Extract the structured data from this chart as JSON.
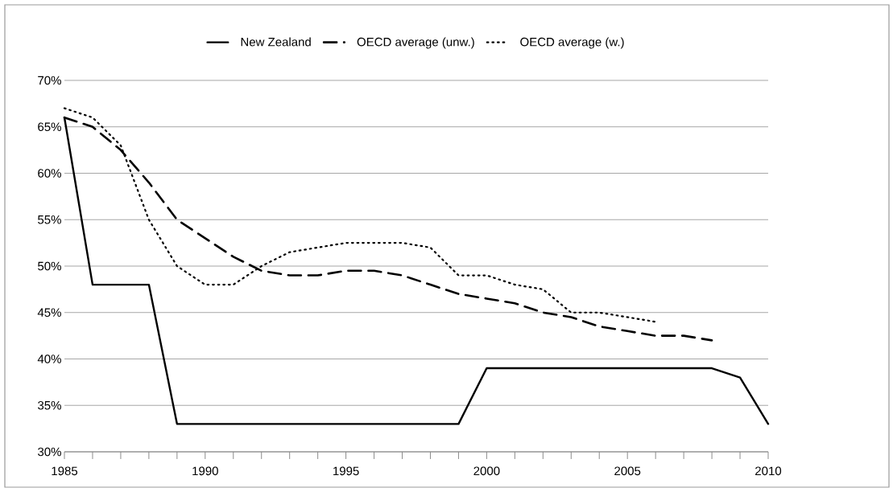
{
  "chart_data": {
    "type": "line",
    "x": [
      1985,
      1986,
      1987,
      1988,
      1989,
      1990,
      1991,
      1992,
      1993,
      1994,
      1995,
      1996,
      1997,
      1998,
      1999,
      2000,
      2001,
      2002,
      2003,
      2004,
      2005,
      2006,
      2007,
      2008,
      2009,
      2010
    ],
    "series": [
      {
        "name": "New Zealand",
        "color": "#000000",
        "line_style": "solid",
        "values": [
          66,
          48,
          48,
          48,
          33,
          33,
          33,
          33,
          33,
          33,
          33,
          33,
          33,
          33,
          33,
          39,
          39,
          39,
          39,
          39,
          39,
          39,
          39,
          39,
          38,
          33
        ]
      },
      {
        "name": "OECD average (unw.)",
        "color": "#000000",
        "line_style": "dashed",
        "values": [
          66,
          65,
          62.5,
          59,
          55,
          53,
          51,
          49.5,
          49,
          49,
          49.5,
          49.5,
          49,
          48,
          47,
          46.5,
          46,
          45,
          44.5,
          43.5,
          43,
          42.5,
          42.5,
          42,
          null,
          null
        ]
      },
      {
        "name": "OECD average (w.)",
        "color": "#000000",
        "line_style": "dotted",
        "values": [
          67,
          66,
          63,
          55,
          50,
          48,
          48,
          50,
          51.5,
          52,
          52.5,
          52.5,
          52.5,
          52,
          49,
          49,
          48,
          47.5,
          45,
          45,
          44.5,
          44,
          null,
          null,
          null,
          null
        ]
      }
    ],
    "xlim": [
      1985,
      2010
    ],
    "xticks": [
      1985,
      1990,
      1995,
      2000,
      2005,
      2010
    ],
    "ylim": [
      30,
      70
    ],
    "yticks": [
      {
        "value": 30,
        "label": "30%"
      },
      {
        "value": 35,
        "label": "35%"
      },
      {
        "value": 40,
        "label": "40%"
      },
      {
        "value": 45,
        "label": "45%"
      },
      {
        "value": 50,
        "label": "50%"
      },
      {
        "value": 55,
        "label": "55%"
      },
      {
        "value": 60,
        "label": "60%"
      },
      {
        "value": 65,
        "label": "65%"
      },
      {
        "value": 70,
        "label": "70%"
      }
    ],
    "grid": "y",
    "legend": "top",
    "marker": "none"
  }
}
